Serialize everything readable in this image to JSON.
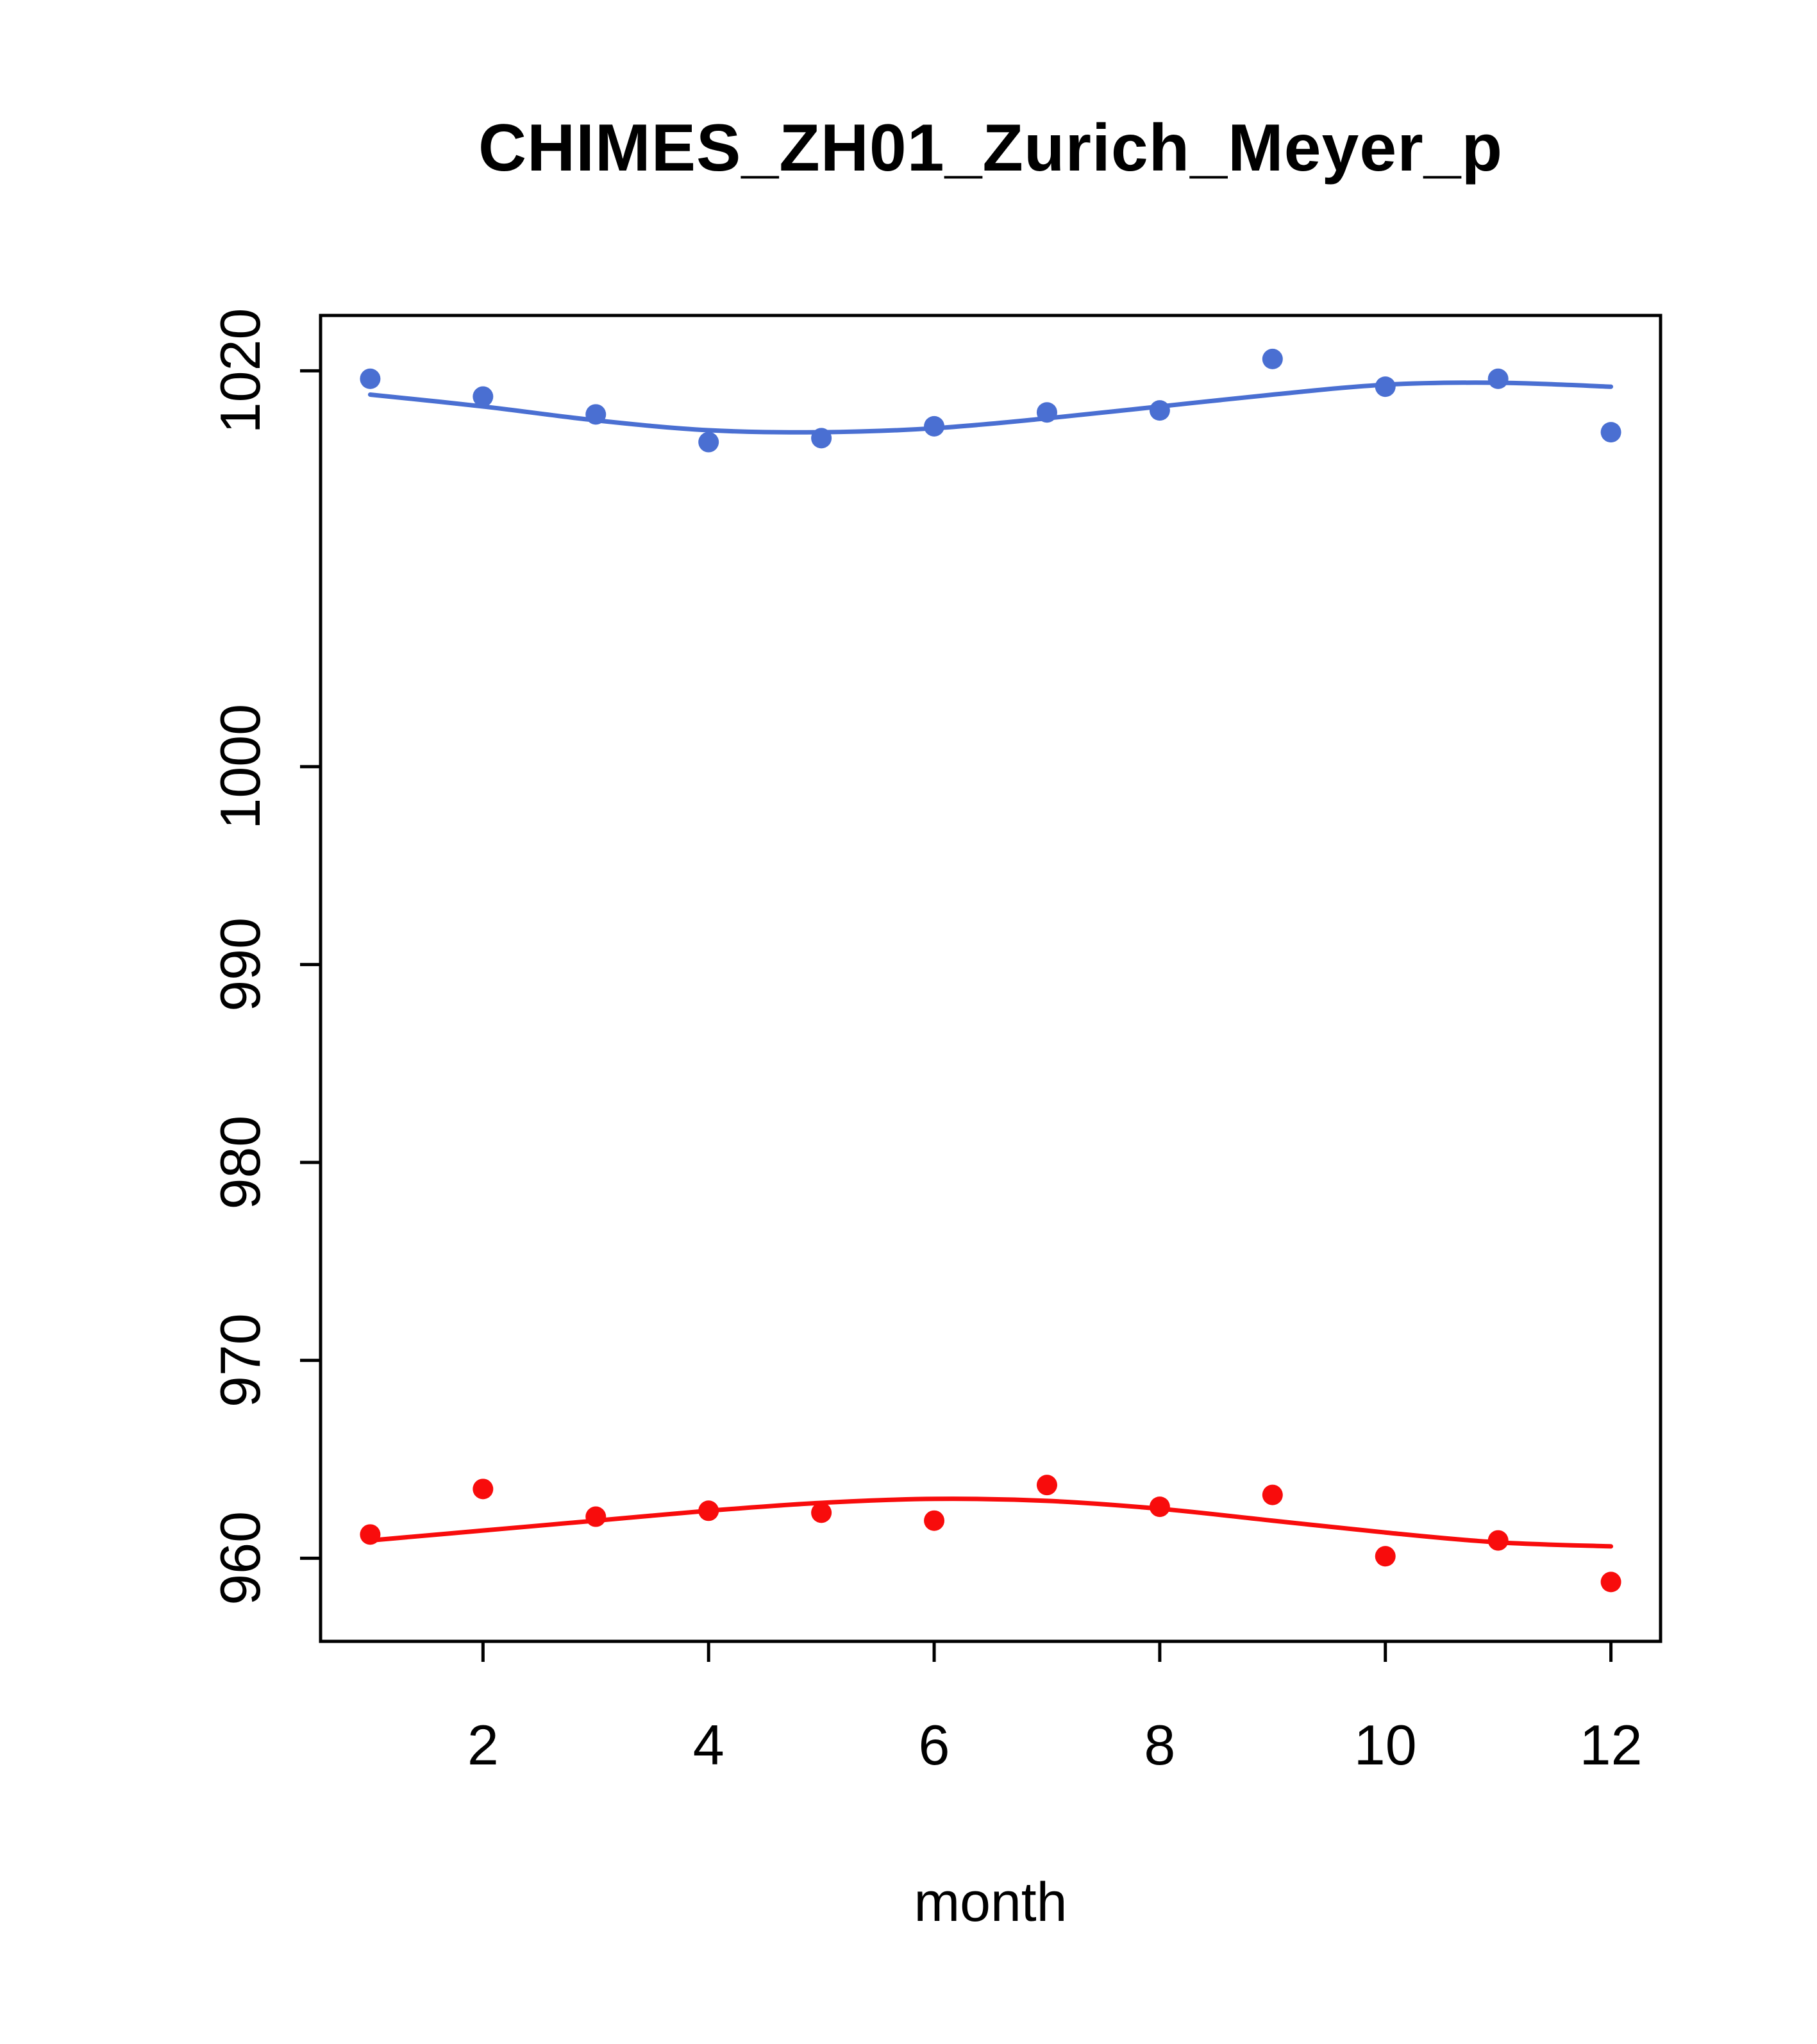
{
  "chart_data": {
    "type": "scatter",
    "title": "CHIMES_ZH01_Zurich_Meyer_p",
    "xlabel": "month",
    "ylabel": "",
    "x": [
      1,
      2,
      3,
      4,
      5,
      6,
      7,
      8,
      9,
      10,
      11,
      12
    ],
    "xlim": [
      0.56,
      12.44
    ],
    "ylim": [
      955.8,
      1022.8
    ],
    "xticks": [
      2,
      4,
      6,
      8,
      10,
      12
    ],
    "yticks": [
      960,
      970,
      980,
      990,
      1000,
      1020
    ],
    "grid": false,
    "legend": false,
    "series": [
      {
        "name": "blue",
        "color": "#4a6fd2",
        "points": [
          1019.6,
          1018.7,
          1017.8,
          1016.4,
          1016.6,
          1017.2,
          1017.9,
          1018.0,
          1020.6,
          1019.2,
          1019.6,
          1016.9
        ],
        "line": [
          1018.8,
          1018.2,
          1017.5,
          1017.0,
          1016.9,
          1017.1,
          1017.6,
          1018.2,
          1018.8,
          1019.3,
          1019.4,
          1019.2
        ]
      },
      {
        "name": "red",
        "color": "#f80c0c",
        "points": [
          961.2,
          963.5,
          962.1,
          962.4,
          962.3,
          961.9,
          963.7,
          962.6,
          963.2,
          960.1,
          960.9,
          958.8
        ],
        "line": [
          960.9,
          961.4,
          961.9,
          962.4,
          962.8,
          963.0,
          962.9,
          962.5,
          961.9,
          961.3,
          960.8,
          960.6
        ]
      }
    ]
  }
}
